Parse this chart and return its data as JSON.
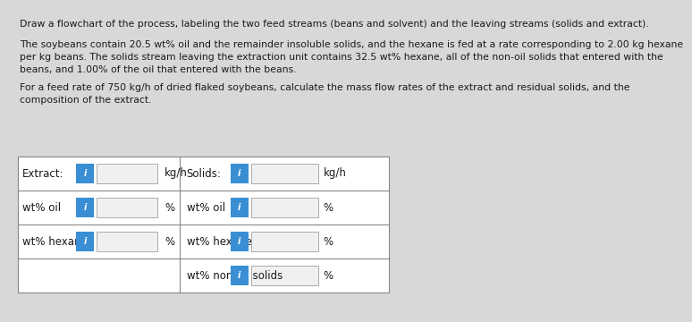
{
  "bg_color": "#d8d8d8",
  "text_color": "#1a1a1a",
  "title_line": "Draw a flowchart of the process, labeling the two feed streams (beans and solvent) and the leaving streams (solids and extract).",
  "para1_lines": [
    "The soybeans contain 20.5 wt% oil and the remainder insoluble solids, and the hexane is fed at a rate corresponding to 2.00 kg hexane",
    "per kg beans. The solids stream leaving the extraction unit contains 32.5 wt% hexane, all of the non-oil solids that entered with the",
    "beans, and 1.00% of the oil that entered with the beans."
  ],
  "para2_lines": [
    "For a feed rate of 750 kg/h of dried flaked soybeans, calculate the mass flow rates of the extract and residual solids, and the",
    "composition of the extract."
  ],
  "table_header_left": "Extract:",
  "table_header_left_unit": "kg/h",
  "table_header_right": "Solids:",
  "table_header_right_unit": "kg/h",
  "left_rows": [
    "wt% oil",
    "wt% hexane"
  ],
  "right_rows": [
    "wt% oil",
    "wt% hexane",
    "wt% non-oil solids"
  ],
  "input_box_color": "#3a8fd4",
  "percent_sign": "%",
  "font_size_text": 7.8,
  "font_size_table": 8.5
}
